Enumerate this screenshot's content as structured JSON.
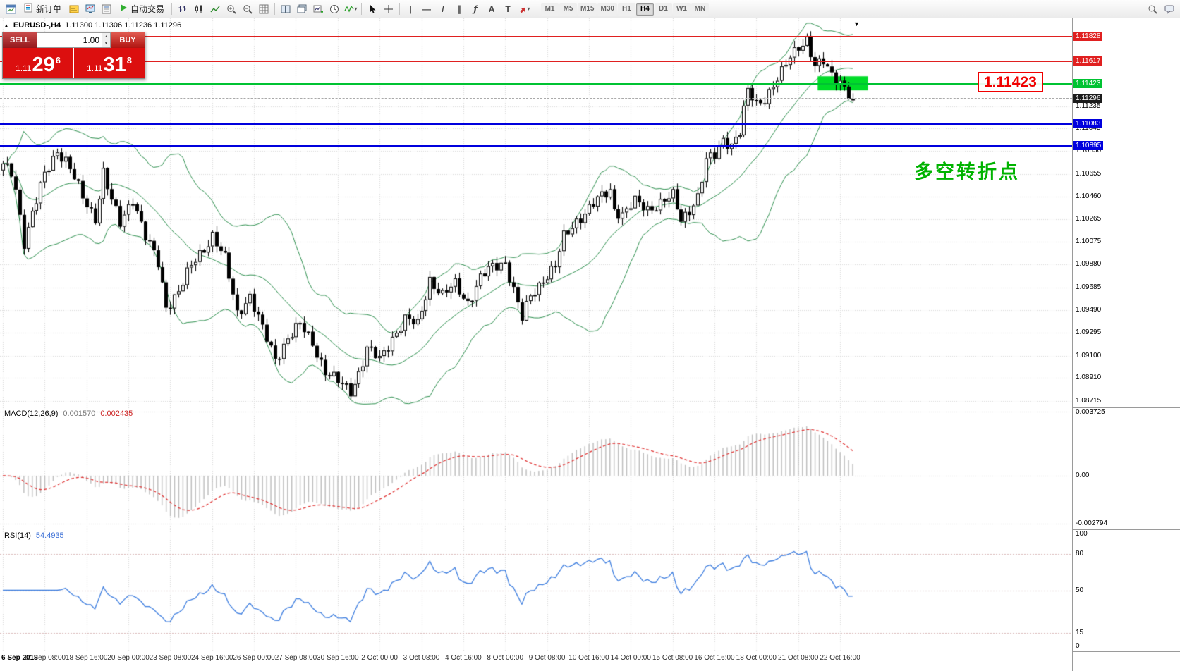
{
  "toolbar": {
    "new_order_label": "新订单",
    "auto_trading_label": "自动交易",
    "glyphs": {
      "vline": "|",
      "hline": "—",
      "trendline": "/",
      "channel": "∥",
      "fibonacci": "ƒ",
      "text": "A",
      "label": "T",
      "caret": "▾"
    },
    "timeframes": [
      "M1",
      "M5",
      "M15",
      "M30",
      "H1",
      "H4",
      "D1",
      "W1",
      "MN"
    ],
    "active_timeframe": "H4",
    "icon_names": [
      "new-window-icon",
      "new-order-icon",
      "profile-icon",
      "market-watch-icon",
      "data-window-icon",
      "auto-trading-icon",
      "bar-chart-icon",
      "candlestick-chart-icon",
      "line-chart-icon",
      "zoom-in-icon",
      "zoom-out-icon",
      "grid-icon",
      "tile-windows-icon",
      "cascade-windows-icon",
      "new-chart-icon",
      "clock-icon",
      "indicators-icon",
      "cursor-icon",
      "crosshair-icon",
      "vline-icon",
      "hline-icon",
      "trendline-icon",
      "channel-icon",
      "fibonacci-icon",
      "text-icon",
      "label-icon",
      "arrows-icon",
      "search-icon",
      "chat-icon"
    ]
  },
  "chart": {
    "symbol_period": "EURUSD-,H4",
    "ohlc": "1.11300 1.11306 1.11236 1.11296",
    "marker": "▲",
    "shift_marker": "▼"
  },
  "trade_panel": {
    "sell_label": "SELL",
    "buy_label": "BUY",
    "volume": "1.00",
    "spinner_up": "▲",
    "spinner_down": "▼",
    "bid": {
      "prefix": "1.11",
      "big": "29",
      "sup": "6"
    },
    "ask": {
      "prefix": "1.11",
      "big": "31",
      "sup": "8"
    }
  },
  "annotations": {
    "price_box": "1.11423",
    "note": "多空转折点"
  },
  "levels": [
    {
      "price": 1.11828,
      "label": "1.11828",
      "color": "#e02020",
      "kind": "red"
    },
    {
      "price": 1.11617,
      "label": "1.11617",
      "color": "#e02020",
      "kind": "red"
    },
    {
      "price": 1.11423,
      "label": "1.11423",
      "color": "#00c332",
      "kind": "green"
    },
    {
      "price": 1.11296,
      "label": "1.11296",
      "color": "#1c1c1c",
      "kind": "bid"
    },
    {
      "price": 1.11083,
      "label": "1.11083",
      "color": "#0000dd",
      "kind": "blue"
    },
    {
      "price": 1.10895,
      "label": "1.10895",
      "color": "#0000dd",
      "kind": "blue"
    }
  ],
  "price_axis": {
    "max": 1.11986,
    "min": 1.08658,
    "gridlines": [
      1.11235,
      1.11045,
      1.1085,
      1.10655,
      1.1046,
      1.10265,
      1.10075,
      1.0988,
      1.09685,
      1.0949,
      1.09295,
      1.091,
      1.0891,
      1.08715
    ]
  },
  "time_axis": {
    "labels": [
      "6 Sep 2019",
      "17 Sep 08:00",
      "18 Sep 16:00",
      "20 Sep 00:00",
      "23 Sep 08:00",
      "24 Sep 16:00",
      "26 Sep 00:00",
      "27 Sep 08:00",
      "30 Sep 16:00",
      "2 Oct 00:00",
      "3 Oct 08:00",
      "4 Oct 16:00",
      "8 Oct 00:00",
      "9 Oct 08:00",
      "10 Oct 16:00",
      "14 Oct 00:00",
      "15 Oct 08:00",
      "16 Oct 16:00",
      "18 Oct 00:00",
      "21 Oct 08:00",
      "22 Oct 16:00"
    ]
  },
  "chart_data": {
    "type": "candlestick",
    "symbol": "EURUSD-",
    "timeframe": "H4",
    "bars_total": 204,
    "bars_per_time_label": 10,
    "last_close": 1.11296,
    "price_anchors": [
      [
        0,
        1.1072
      ],
      [
        2,
        1.1066
      ],
      [
        3,
        1.1052
      ],
      [
        5,
        1.1008
      ],
      [
        7,
        1.1032
      ],
      [
        10,
        1.1064
      ],
      [
        13,
        1.1086
      ],
      [
        15,
        1.1078
      ],
      [
        17,
        1.1062
      ],
      [
        19,
        1.1044
      ],
      [
        22,
        1.1028
      ],
      [
        24,
        1.1068
      ],
      [
        26,
        1.1042
      ],
      [
        28,
        1.1022
      ],
      [
        31,
        1.1046
      ],
      [
        34,
        1.1012
      ],
      [
        37,
        1.0988
      ],
      [
        39,
        1.0952
      ],
      [
        42,
        1.0966
      ],
      [
        45,
        1.0986
      ],
      [
        48,
        1.1002
      ],
      [
        50,
        1.1014
      ],
      [
        53,
        1.0992
      ],
      [
        56,
        1.0946
      ],
      [
        59,
        1.0962
      ],
      [
        62,
        1.0932
      ],
      [
        65,
        1.0907
      ],
      [
        68,
        1.0926
      ],
      [
        71,
        1.0936
      ],
      [
        74,
        1.0921
      ],
      [
        77,
        1.0897
      ],
      [
        80,
        1.0887
      ],
      [
        83,
        1.088
      ],
      [
        85,
        1.0896
      ],
      [
        87,
        1.0916
      ],
      [
        90,
        1.0906
      ],
      [
        93,
        1.0926
      ],
      [
        96,
        1.0941
      ],
      [
        99,
        1.0936
      ],
      [
        102,
        1.0976
      ],
      [
        105,
        1.0961
      ],
      [
        108,
        1.0971
      ],
      [
        111,
        1.0956
      ],
      [
        114,
        1.0976
      ],
      [
        117,
        1.0986
      ],
      [
        120,
        1.0991
      ],
      [
        124,
        1.0941
      ],
      [
        126,
        1.0961
      ],
      [
        129,
        1.0976
      ],
      [
        132,
        1.0986
      ],
      [
        134,
        1.1011
      ],
      [
        137,
        1.1026
      ],
      [
        140,
        1.1036
      ],
      [
        143,
        1.1046
      ],
      [
        145,
        1.1052
      ],
      [
        146,
        1.1036
      ],
      [
        148,
        1.1031
      ],
      [
        151,
        1.1041
      ],
      [
        154,
        1.1036
      ],
      [
        157,
        1.1041
      ],
      [
        160,
        1.1046
      ],
      [
        162,
        1.1026
      ],
      [
        164,
        1.1036
      ],
      [
        166,
        1.1046
      ],
      [
        168,
        1.1076
      ],
      [
        170,
        1.1081
      ],
      [
        172,
        1.1096
      ],
      [
        174,
        1.1091
      ],
      [
        176,
        1.1101
      ],
      [
        178,
        1.1136
      ],
      [
        180,
        1.1126
      ],
      [
        182,
        1.1131
      ],
      [
        184,
        1.1141
      ],
      [
        186,
        1.1151
      ],
      [
        188,
        1.1166
      ],
      [
        190,
        1.1176
      ],
      [
        192,
        1.1181
      ],
      [
        194,
        1.1156
      ],
      [
        196,
        1.1161
      ],
      [
        198,
        1.1151
      ],
      [
        200,
        1.1146
      ],
      [
        202,
        1.1133
      ],
      [
        203,
        1.11296
      ]
    ],
    "highlight_rect": {
      "bar_start": 195,
      "bar_end": 207,
      "price_top": 1.1149,
      "price_bottom": 1.1137,
      "color": "#00dc28"
    },
    "indicators": {
      "bollinger": {
        "period": 20,
        "deviation": 2,
        "color": "#2f9150"
      },
      "macd": {
        "label": "MACD(12,26,9)",
        "value_main": "0.001570",
        "value_signal": "0.002435",
        "axis_values": [
          0.003725,
          0,
          -0.002794
        ],
        "axis_labels": [
          "0.003725",
          "0.00",
          "-0.002794"
        ],
        "range_max": 0.00395,
        "range_min": -0.0031,
        "hist_color": "#bdbdbd",
        "signal_color": "#e03030"
      },
      "rsi": {
        "label": "RSI(14)",
        "value": "54.4935",
        "axis_values": [
          100,
          80,
          50,
          15,
          0
        ],
        "axis_labels": [
          "100",
          "80",
          "50",
          "15",
          "0"
        ],
        "levels": [
          80,
          50,
          15
        ],
        "color": "#3f7fe0"
      }
    }
  },
  "colors": {
    "grid": "#d8d8d8",
    "bull": "#ffffff",
    "bear": "#000000",
    "wick": "#000000"
  }
}
